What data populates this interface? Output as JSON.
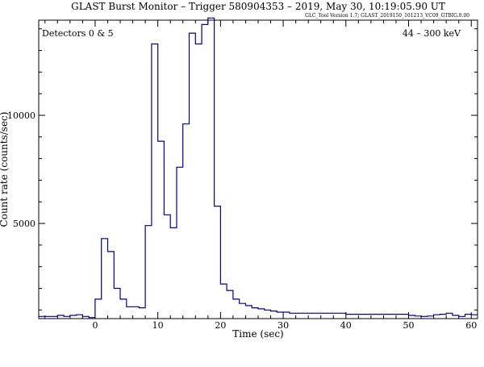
{
  "chart_data": {
    "type": "line",
    "title": "GLAST Burst Monitor  –  Trigger 580904353  –  2019, May 30, 10:19:05.90 UT",
    "subtitle": "GLC_Tool Version 1.7; GLAST_2019150_101213_VC09_GTBIG.0.00",
    "xlabel": "Time (sec)",
    "ylabel": "Count rate (counts/sec)",
    "annotation_left": "Detectors 0 & 5",
    "annotation_right": "44 – 300 keV",
    "xlim": [
      -9,
      61
    ],
    "ylim": [
      600,
      14400
    ],
    "x_ticks": [
      0,
      10,
      20,
      30,
      40,
      50,
      60
    ],
    "y_ticks": [
      5000,
      10000
    ],
    "line_color": "#00008b",
    "grid": false,
    "legend": "none",
    "series": [
      {
        "step_edges": [
          -9,
          -8,
          -7,
          -6,
          -5,
          -4,
          -3,
          -2,
          -1,
          0,
          1,
          2,
          3,
          4,
          5,
          7,
          8,
          9,
          10,
          11,
          12,
          13,
          14,
          15,
          16,
          17,
          18,
          19,
          20,
          21,
          22,
          23,
          24,
          25,
          26,
          27,
          28,
          29,
          30,
          31,
          40,
          50,
          51,
          52,
          53,
          54,
          55,
          56,
          57,
          58,
          59,
          60,
          61
        ],
        "values": [
          700,
          700,
          700,
          750,
          700,
          750,
          780,
          700,
          650,
          1500,
          4300,
          3700,
          2000,
          1500,
          1150,
          1100,
          4900,
          13300,
          8800,
          5400,
          4800,
          7600,
          9600,
          13800,
          13300,
          14200,
          14500,
          5800,
          2200,
          1900,
          1500,
          1300,
          1200,
          1100,
          1050,
          1000,
          950,
          900,
          900,
          850,
          800,
          750,
          720,
          700,
          720,
          780,
          800,
          850,
          750,
          700,
          800,
          780
        ]
      }
    ]
  }
}
